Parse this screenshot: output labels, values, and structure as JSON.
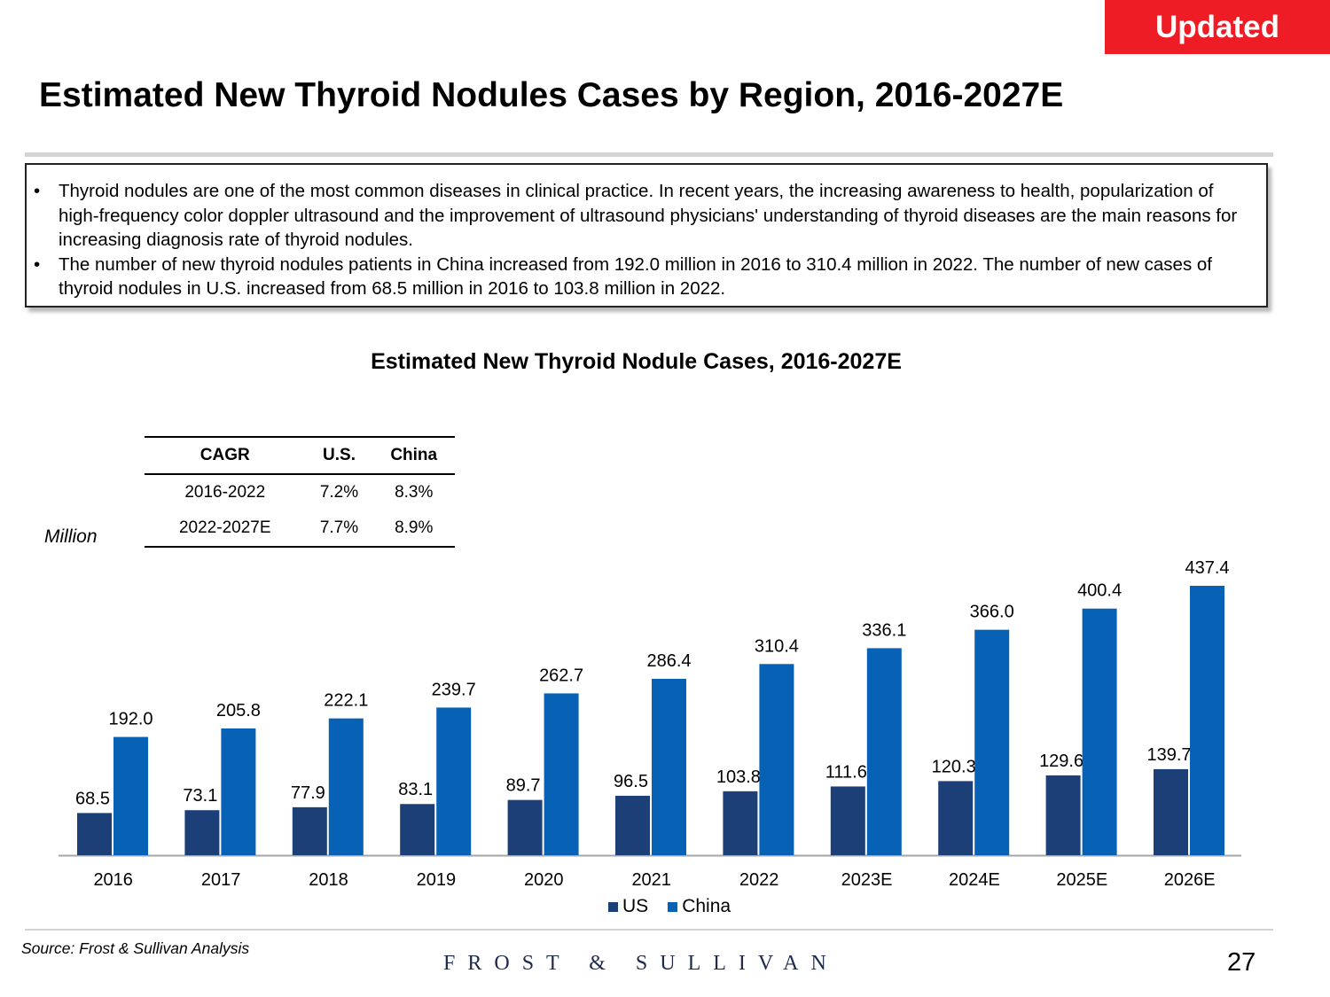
{
  "badge": "Updated",
  "title": "Estimated New Thyroid Nodules Cases by Region, 2016-2027E",
  "bullets": [
    "Thyroid nodules are one of the most common diseases in clinical practice. In recent years, the increasing awareness to health, popularization of high-frequency color doppler ultrasound and the improvement of ultrasound physicians' understanding of thyroid diseases are the main reasons for increasing diagnosis rate of thyroid nodules.",
    "The number of new thyroid nodules patients in China increased from 192.0 million in 2016 to 310.4 million in 2022. The number of new cases of thyroid nodules in U.S. increased from 68.5 million in 2016 to 103.8 million in 2022."
  ],
  "unit_label": "Million",
  "cagr_table": {
    "headers": [
      "CAGR",
      "U.S.",
      "China"
    ],
    "rows": [
      [
        "2016-2022",
        "7.2%",
        "8.3%"
      ],
      [
        "2022-2027E",
        "7.7%",
        "8.9%"
      ]
    ]
  },
  "chart_data": {
    "type": "bar",
    "title": "Estimated New Thyroid Nodule Cases, 2016-2027E",
    "ylabel": "Million",
    "categories": [
      "2016",
      "2017",
      "2018",
      "2019",
      "2020",
      "2021",
      "2022",
      "2023E",
      "2024E",
      "2025E",
      "2026E"
    ],
    "series": [
      {
        "name": "US",
        "color": "#1c3f78",
        "values": [
          68.5,
          73.1,
          77.9,
          83.1,
          89.7,
          96.5,
          103.8,
          111.6,
          120.3,
          129.6,
          139.7
        ]
      },
      {
        "name": "China",
        "color": "#0762b5",
        "values": [
          192.0,
          205.8,
          222.1,
          239.7,
          262.7,
          286.4,
          310.4,
          336.1,
          366.0,
          400.4,
          437.4
        ]
      }
    ],
    "legend": "bottom-center",
    "grid": false
  },
  "source": "Source: Frost & Sullivan Analysis",
  "brand": "FROST & SULLIVAN",
  "page_number": "27"
}
